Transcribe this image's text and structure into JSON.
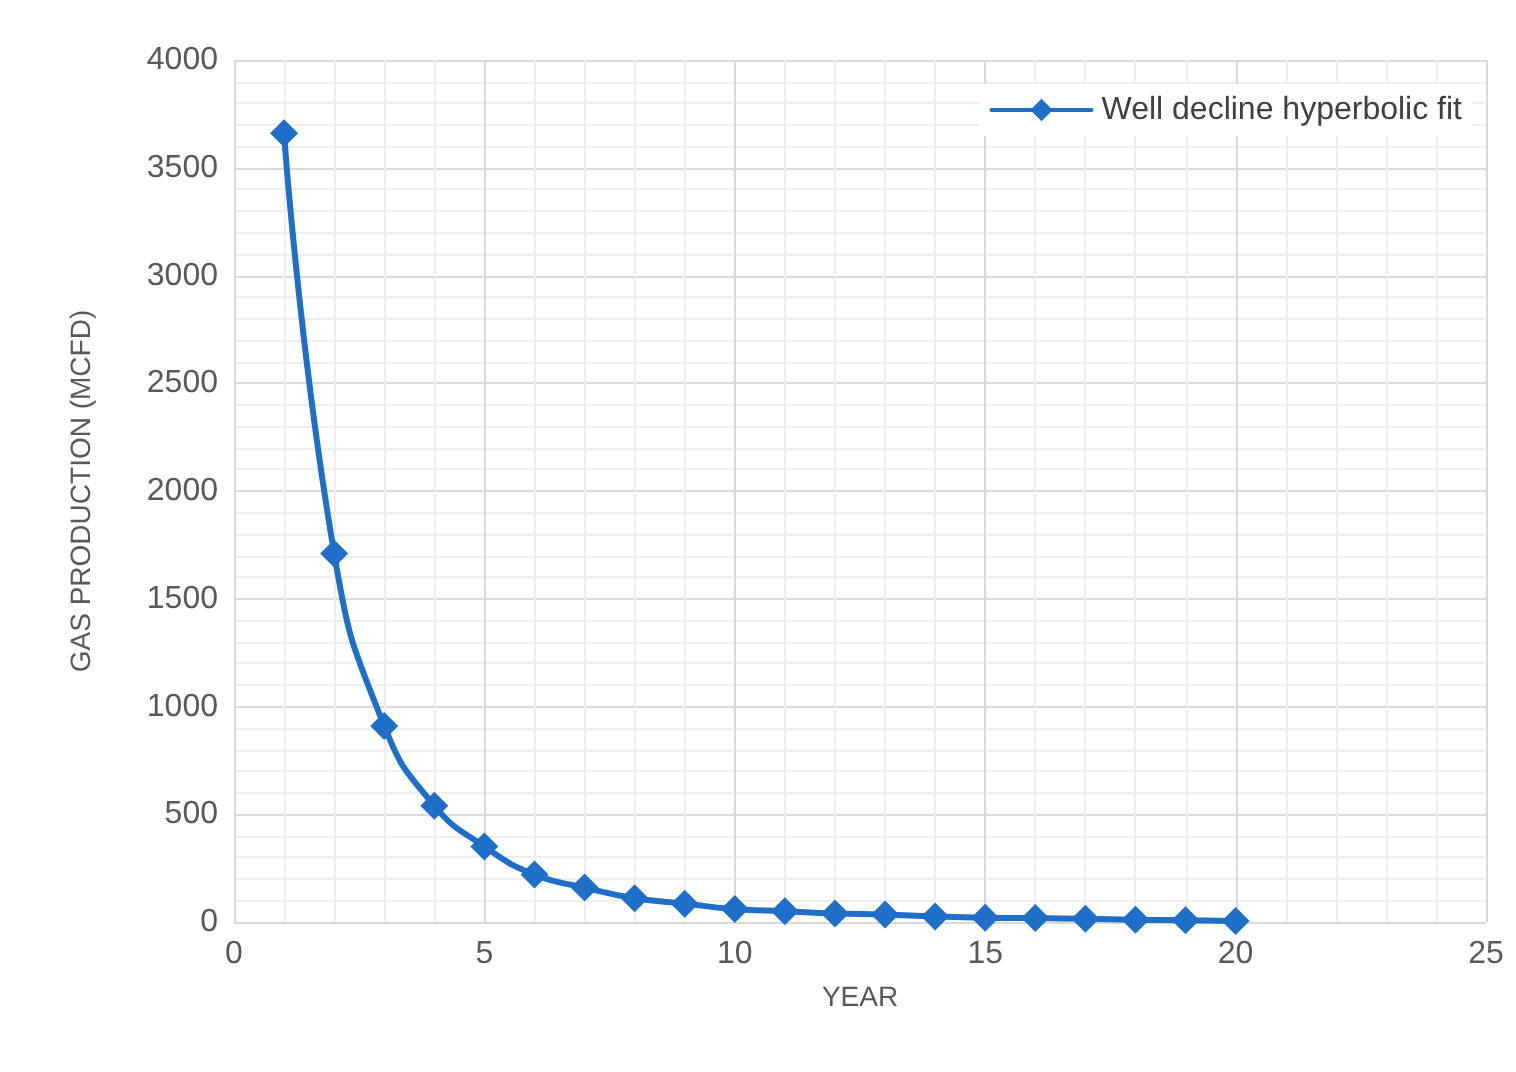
{
  "chart_data": {
    "type": "line",
    "xlabel": "YEAR",
    "ylabel": "GAS PRODUCTION (MCFD)",
    "x": [
      1,
      2,
      3,
      4,
      5,
      6,
      7,
      8,
      9,
      10,
      11,
      12,
      13,
      14,
      15,
      16,
      17,
      18,
      19,
      20
    ],
    "series": [
      {
        "name": "Well decline hyperbolic fit",
        "color": "#1f6fc8",
        "values": [
          3660,
          1710,
          910,
          540,
          350,
          220,
          160,
          110,
          85,
          60,
          50,
          40,
          35,
          25,
          20,
          18,
          15,
          10,
          8,
          5
        ]
      }
    ],
    "xlim": [
      0,
      25
    ],
    "xticks": [
      0,
      5,
      10,
      15,
      20,
      25
    ],
    "ylim": [
      0,
      4000
    ],
    "yticks": [
      0,
      500,
      1000,
      1500,
      2000,
      2500,
      3000,
      3500,
      4000
    ],
    "grid": true,
    "legend": "top right",
    "marker": "diamond",
    "line_style": "solid"
  }
}
